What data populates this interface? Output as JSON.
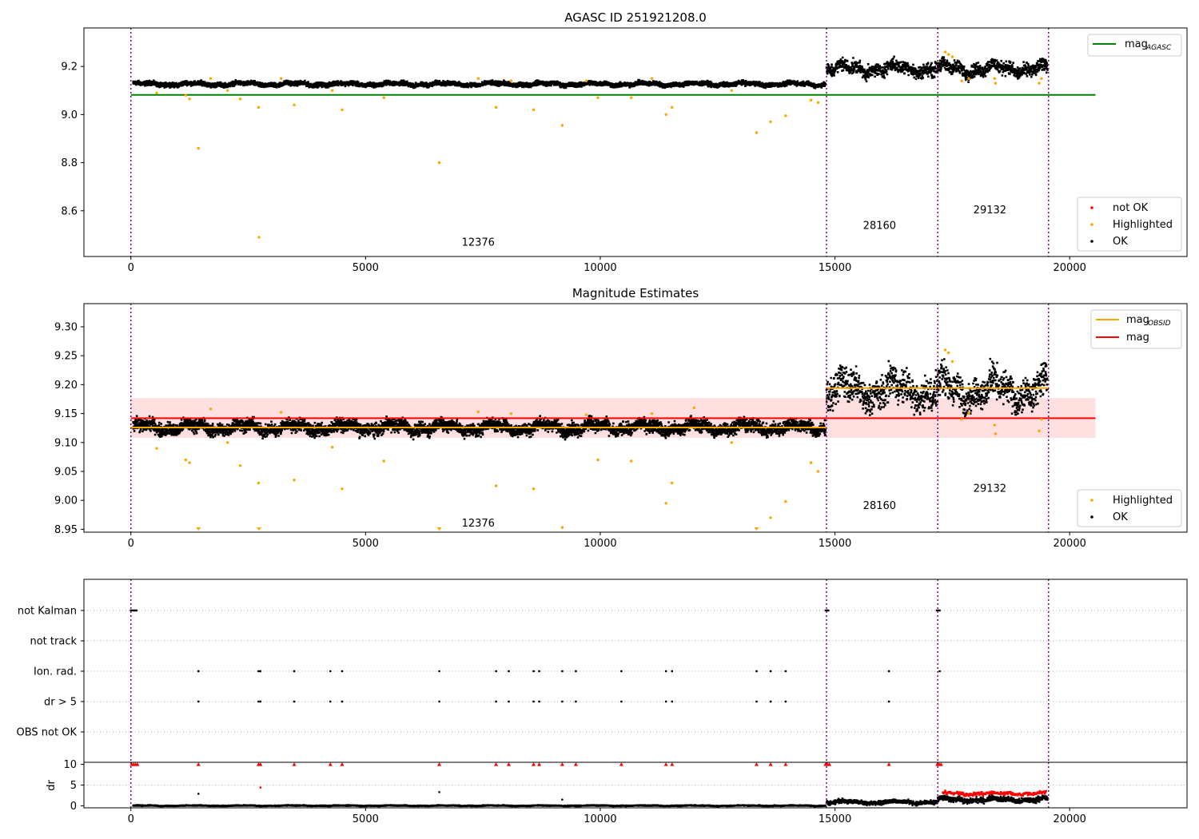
{
  "chart_data": [
    {
      "type": "scatter",
      "title": "AGASC ID 251921208.0",
      "xlim": [
        -1000,
        22500
      ],
      "ylim": [
        8.41,
        9.36
      ],
      "x_ticks": [
        0,
        5000,
        10000,
        15000,
        20000
      ],
      "y_ticks": [
        8.6,
        8.8,
        9.0,
        9.2
      ],
      "y_tick_labels": [
        "8.6",
        "8.8",
        "9.0",
        "9.2"
      ],
      "obs_boundaries": [
        0,
        14820,
        17190,
        19550
      ],
      "obsid_labels": [
        {
          "text": "12376",
          "x": 7400,
          "y": 8.455
        },
        {
          "text": "28160",
          "x": 15950,
          "y": 8.525
        },
        {
          "text": "29132",
          "x": 18300,
          "y": 8.59
        }
      ],
      "lines": [
        {
          "name": "mag_AGASC",
          "color": "#008000",
          "y": 9.082,
          "x_range": [
            0,
            20550
          ]
        }
      ],
      "ok_bands": [
        {
          "x_range": [
            50,
            14800
          ],
          "center": 9.131,
          "spread": 0.013
        },
        {
          "x_range": [
            14820,
            19530
          ],
          "center": 9.195,
          "spread": 0.04
        }
      ],
      "highlighted_points": [
        [
          1440,
          8.86
        ],
        [
          2730,
          8.49
        ],
        [
          2720,
          9.03
        ],
        [
          3480,
          9.04
        ],
        [
          4500,
          9.02
        ],
        [
          6570,
          8.8
        ],
        [
          7780,
          9.03
        ],
        [
          8580,
          9.02
        ],
        [
          9190,
          8.955
        ],
        [
          11400,
          9.0
        ],
        [
          11530,
          9.03
        ],
        [
          13330,
          8.925
        ],
        [
          13630,
          8.97
        ],
        [
          13950,
          8.995
        ],
        [
          14490,
          9.06
        ],
        [
          14640,
          9.05
        ],
        [
          2330,
          9.065
        ],
        [
          1250,
          9.065
        ],
        [
          1170,
          9.08
        ],
        [
          5390,
          9.07
        ],
        [
          9950,
          9.07
        ],
        [
          10660,
          9.07
        ],
        [
          550,
          9.09
        ],
        [
          2060,
          9.1
        ],
        [
          4290,
          9.1
        ],
        [
          12800,
          9.1
        ],
        [
          1700,
          9.15
        ],
        [
          3200,
          9.15
        ],
        [
          7400,
          9.15
        ],
        [
          8100,
          9.14
        ],
        [
          9700,
          9.14
        ],
        [
          11100,
          9.15
        ],
        [
          17350,
          9.26
        ],
        [
          17420,
          9.25
        ],
        [
          17500,
          9.24
        ],
        [
          17700,
          9.14
        ],
        [
          17850,
          9.15
        ],
        [
          18400,
          9.15
        ],
        [
          18420,
          9.13
        ],
        [
          19350,
          9.13
        ],
        [
          19400,
          9.15
        ]
      ],
      "legend_top": [
        {
          "label": "mag",
          "sub": "AGASC",
          "color": "#008000"
        }
      ],
      "legend_bottom": [
        {
          "label": "not OK",
          "color": "#ff0000"
        },
        {
          "label": "Highlighted",
          "color": "#ffa500"
        },
        {
          "label": "OK",
          "color": "#000000"
        }
      ]
    },
    {
      "type": "scatter",
      "title": "Magnitude Estimates",
      "xlim": [
        -1000,
        22500
      ],
      "ylim": [
        8.945,
        9.34
      ],
      "x_ticks": [
        0,
        5000,
        10000,
        15000,
        20000
      ],
      "y_ticks": [
        8.95,
        9.0,
        9.05,
        9.1,
        9.15,
        9.2,
        9.25,
        9.3
      ],
      "y_tick_labels": [
        "8.95",
        "9.00",
        "9.05",
        "9.10",
        "9.15",
        "9.20",
        "9.25",
        "9.30"
      ],
      "obs_boundaries": [
        0,
        14820,
        17190,
        19550
      ],
      "obsid_labels": [
        {
          "text": "12376",
          "x": 7400,
          "y": 8.955
        },
        {
          "text": "28160",
          "x": 15950,
          "y": 8.985
        },
        {
          "text": "29132",
          "x": 18300,
          "y": 9.015
        }
      ],
      "shaded_band": {
        "color": "#ff0000",
        "opacity": 0.12,
        "y_range": [
          9.108,
          9.177
        ],
        "x_range": [
          0,
          20550
        ]
      },
      "lines": [
        {
          "name": "mag",
          "color": "#ff0000",
          "y": 9.142,
          "x_range": [
            0,
            20550
          ]
        },
        {
          "name": "mag_OBSID 12376",
          "color": "#ffa500",
          "y": 9.126,
          "x_range": [
            0,
            14820
          ]
        },
        {
          "name": "mag_OBSID 28160/29132",
          "color": "#ffa500",
          "y": 9.194,
          "x_range": [
            14820,
            19550
          ]
        }
      ],
      "ok_bands": [
        {
          "x_range": [
            50,
            14800
          ],
          "center": 9.128,
          "spread": 0.016
        },
        {
          "x_range": [
            14820,
            19530
          ],
          "center": 9.192,
          "spread": 0.042
        }
      ],
      "highlighted_points": [
        [
          1440,
          8.948
        ],
        [
          2730,
          8.948
        ],
        [
          6570,
          8.948
        ],
        [
          13330,
          8.948
        ],
        [
          2720,
          9.03
        ],
        [
          3480,
          9.035
        ],
        [
          4500,
          9.02
        ],
        [
          7780,
          9.025
        ],
        [
          8580,
          9.02
        ],
        [
          9190,
          8.953
        ],
        [
          11400,
          8.995
        ],
        [
          11530,
          9.03
        ],
        [
          13630,
          8.97
        ],
        [
          13950,
          8.998
        ],
        [
          14490,
          9.065
        ],
        [
          14640,
          9.05
        ],
        [
          2330,
          9.06
        ],
        [
          1250,
          9.065
        ],
        [
          1170,
          9.07
        ],
        [
          5390,
          9.068
        ],
        [
          9950,
          9.07
        ],
        [
          10660,
          9.068
        ],
        [
          550,
          9.09
        ],
        [
          2060,
          9.1
        ],
        [
          4290,
          9.092
        ],
        [
          12800,
          9.1
        ],
        [
          1700,
          9.158
        ],
        [
          3200,
          9.152
        ],
        [
          7400,
          9.153
        ],
        [
          8100,
          9.15
        ],
        [
          9700,
          9.148
        ],
        [
          11100,
          9.15
        ],
        [
          12000,
          9.16
        ],
        [
          17350,
          9.26
        ],
        [
          17420,
          9.255
        ],
        [
          17500,
          9.24
        ],
        [
          17700,
          9.14
        ],
        [
          17850,
          9.15
        ],
        [
          18400,
          9.13
        ],
        [
          18420,
          9.115
        ],
        [
          19350,
          9.12
        ],
        [
          19400,
          9.14
        ]
      ],
      "legend_top": [
        {
          "label": "mag",
          "sub": "OBSID",
          "color": "#ffa500"
        },
        {
          "label": "mag",
          "sub": "",
          "color": "#ff0000"
        }
      ],
      "legend_bottom": [
        {
          "label": "Highlighted",
          "color": "#ffa500"
        },
        {
          "label": "OK",
          "color": "#000000"
        }
      ]
    },
    {
      "type": "scatter",
      "title": "",
      "xlim": [
        -1000,
        22500
      ],
      "categories": [
        "not Kalman",
        "not track",
        "Ion. rad.",
        "dr > 5",
        "OBS not OK"
      ],
      "obs_boundaries": [
        0,
        14820,
        17190,
        19550
      ],
      "flags": {
        "not Kalman": [
          0,
          30,
          60,
          90,
          120,
          14800,
          14830,
          14860,
          17170,
          17200,
          17230
        ],
        "not track": [],
        "Ion. rad.": [
          1440,
          2720,
          2760,
          3480,
          4250,
          4500,
          6570,
          7780,
          8050,
          8580,
          8700,
          9190,
          9480,
          10450,
          11400,
          11530,
          13330,
          13630,
          13950,
          16150,
          17230
        ],
        "dr > 5": [
          1440,
          2720,
          2760,
          3480,
          4250,
          4500,
          6570,
          7780,
          8050,
          8580,
          8700,
          9190,
          9480,
          10450,
          11400,
          11530,
          13330,
          13630,
          13950,
          16150
        ],
        "OBS not OK": []
      }
    },
    {
      "type": "scatter",
      "title": "",
      "ylabel": "dr",
      "xlim": [
        -1000,
        22500
      ],
      "ylim": [
        -0.5,
        10.5
      ],
      "y_ticks": [
        0,
        5,
        10
      ],
      "x_ticks": [
        0,
        5000,
        10000,
        15000,
        20000
      ],
      "obs_boundaries": [
        0,
        14820,
        17190,
        19550
      ],
      "capped_at_10": [
        20,
        60,
        100,
        140,
        1440,
        2720,
        2760,
        3480,
        4250,
        4500,
        6570,
        7780,
        8050,
        8580,
        8700,
        9190,
        9480,
        10450,
        11400,
        11530,
        13330,
        13630,
        13950,
        14800,
        14840,
        14880,
        16150,
        17180,
        17220,
        17260
      ],
      "outliers": [
        [
          1440,
          2.9
        ],
        [
          2760,
          4.4
        ],
        [
          6570,
          3.3
        ],
        [
          9190,
          1.5
        ]
      ],
      "red_band": {
        "x_range": [
          17300,
          19500
        ],
        "center": 3.2,
        "spread": 0.6
      },
      "ok_bands": [
        {
          "x_range": [
            50,
            14800
          ],
          "center": 0.25,
          "spread": 0.15
        },
        {
          "x_range": [
            14820,
            17190
          ],
          "center": 1.1,
          "spread": 0.7
        },
        {
          "x_range": [
            17190,
            19530
          ],
          "center": 1.7,
          "spread": 0.9
        }
      ]
    }
  ]
}
